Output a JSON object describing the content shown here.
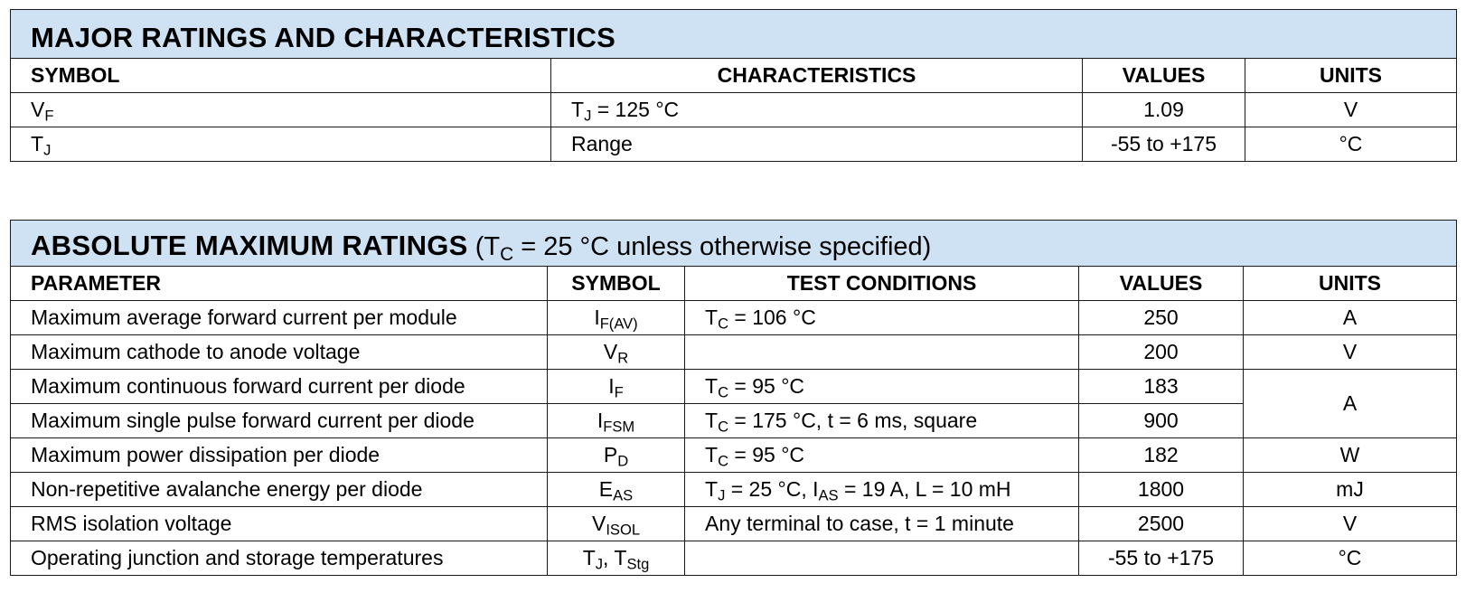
{
  "major": {
    "title": "MAJOR RATINGS AND CHARACTERISTICS",
    "headers": {
      "symbol": "SYMBOL",
      "characteristics": "CHARACTERISTICS",
      "values": "VALUES",
      "units": "UNITS"
    },
    "rows": [
      {
        "symbol_main": "V",
        "symbol_sub": "F",
        "char_main": "T",
        "char_sub": "J",
        "char_rest": " = 125 °C",
        "value": "1.09",
        "unit": "V"
      },
      {
        "symbol_main": "T",
        "symbol_sub": "J",
        "char_text": "Range",
        "value": "-55 to +175",
        "unit": "°C"
      }
    ]
  },
  "absolute": {
    "title": "ABSOLUTE MAXIMUM RATINGS",
    "title_cond_pre": " (T",
    "title_cond_sub": "C",
    "title_cond_rest": " = 25 °C unless otherwise specified)",
    "headers": {
      "parameter": "PARAMETER",
      "symbol": "SYMBOL",
      "test_conditions": "TEST CONDITIONS",
      "values": "VALUES",
      "units": "UNITS"
    },
    "rows": [
      {
        "parameter": "Maximum average forward current per module",
        "symbol_main": "I",
        "symbol_sub": "F(AV)",
        "cond_main": "T",
        "cond_sub": "C",
        "cond_rest": " = 106 °C",
        "value": "250",
        "unit": "A"
      },
      {
        "parameter": "Maximum cathode to anode voltage",
        "symbol_main": "V",
        "symbol_sub": "R",
        "value": "200",
        "unit": "V"
      },
      {
        "parameter": "Maximum continuous forward current per diode",
        "symbol_main": "I",
        "symbol_sub": "F",
        "cond_main": "T",
        "cond_sub": "C",
        "cond_rest": " = 95 °C",
        "value": "183",
        "unit": "A"
      },
      {
        "parameter": "Maximum single pulse forward current per diode",
        "symbol_main": "I",
        "symbol_sub": "FSM",
        "cond_main": "T",
        "cond_sub": "C",
        "cond_rest": " = 175 °C, t = 6 ms, square",
        "value": "900"
      },
      {
        "parameter": "Maximum power dissipation per diode",
        "symbol_main": "P",
        "symbol_sub": "D",
        "cond_main": "T",
        "cond_sub": "C",
        "cond_rest": " = 95 °C",
        "value": "182",
        "unit": "W"
      },
      {
        "parameter": "Non-repetitive avalanche energy per diode",
        "symbol_main": "E",
        "symbol_sub": "AS",
        "cond_main": "T",
        "cond_sub": "J",
        "cond_rest": " = 25 °C, I",
        "cond_sub2": "AS",
        "cond_rest2": " = 19 A, L = 10 mH",
        "value": "1800",
        "unit": "mJ"
      },
      {
        "parameter": "RMS isolation voltage",
        "symbol_main": "V",
        "symbol_sub": "ISOL",
        "cond_text": "Any terminal to case, t = 1 minute",
        "value": "2500",
        "unit": "V"
      },
      {
        "parameter": "Operating junction and storage temperatures",
        "symbol_main": "T",
        "symbol_sub": "J",
        "symbol_mid": ", T",
        "symbol_sub2": "Stg",
        "value": "-55 to +175",
        "unit": "°C"
      }
    ]
  }
}
